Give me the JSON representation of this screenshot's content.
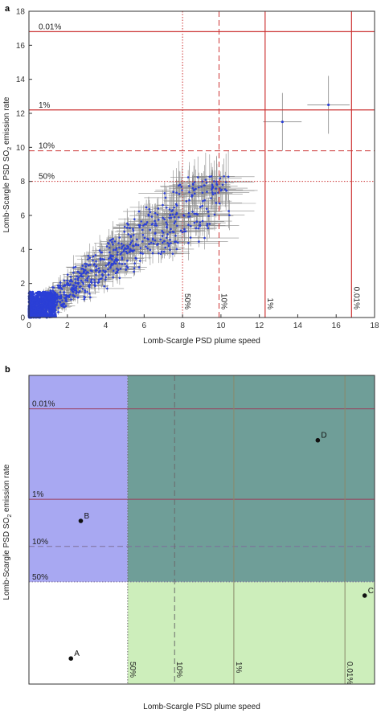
{
  "chart_data": [
    {
      "panel": "a",
      "type": "scatter",
      "xlabel": "Lomb-Scargle PSD plume speed",
      "ylabel": "Lomb-Scargle PSD SO",
      "ylabel_sub": "2",
      "ylabel_tail": " emission rate",
      "xlim": [
        0,
        18
      ],
      "ylim": [
        0,
        18
      ],
      "xticks": [
        "0",
        "2",
        "4",
        "6",
        "8",
        "10",
        "12",
        "14",
        "16",
        "18"
      ],
      "yticks": [
        "0",
        "2",
        "4",
        "6",
        "8",
        "10",
        "12",
        "14",
        "16",
        "18"
      ],
      "point_color": "#2b3fd6",
      "errorbar_color": "#8a8a8a",
      "threshold_color": "#cc3333",
      "y_thresholds": [
        {
          "label": "0.01%",
          "value": 16.8,
          "style": "solid"
        },
        {
          "label": "1%",
          "value": 12.2,
          "style": "solid"
        },
        {
          "label": "10%",
          "value": 9.8,
          "style": "dashed"
        },
        {
          "label": "50%",
          "value": 8.0,
          "style": "dotted"
        }
      ],
      "x_thresholds": [
        {
          "label": "50%",
          "value": 8.0,
          "style": "dotted"
        },
        {
          "label": "10%",
          "value": 9.9,
          "style": "dashed"
        },
        {
          "label": "1%",
          "value": 12.3,
          "style": "solid"
        },
        {
          "label": "0.01%",
          "value": 16.8,
          "style": "solid"
        }
      ],
      "highlight_points": [
        {
          "x": 13.2,
          "y": 11.5,
          "xerr": 1.0,
          "yerr": 1.7
        },
        {
          "x": 15.6,
          "y": 12.5,
          "xerr": 1.1,
          "yerr": 1.7
        }
      ]
    },
    {
      "panel": "b",
      "type": "scatter",
      "xlabel": "Lomb-Scargle PSD plume speed",
      "ylabel": "Lomb-Scargle PSD SO",
      "ylabel_sub": "2",
      "ylabel_tail": " emission rate",
      "xlim": [
        4,
        18
      ],
      "ylim": [
        2.8,
        18.5
      ],
      "region_colors": {
        "top_left": "#a8a8f2",
        "top_right": "#6f9e98",
        "bottom_right": "#cdeebb",
        "bottom_left": "#ffffff"
      },
      "y_thresholds": [
        {
          "label": "0.01%",
          "value": 16.8,
          "style": "solid"
        },
        {
          "label": "1%",
          "value": 12.2,
          "style": "solid"
        },
        {
          "label": "10%",
          "value": 9.8,
          "style": "dashed"
        },
        {
          "label": "50%",
          "value": 8.0,
          "style": "dotted"
        }
      ],
      "x_thresholds": [
        {
          "label": "50%",
          "value": 8.0,
          "style": "dotted"
        },
        {
          "label": "10%",
          "value": 9.9,
          "style": "dashed"
        },
        {
          "label": "1%",
          "value": 12.3,
          "style": "solid"
        },
        {
          "label": "0.01%",
          "value": 16.8,
          "style": "solid"
        }
      ],
      "points": [
        {
          "label": "A",
          "x": 5.7,
          "y": 4.1
        },
        {
          "label": "B",
          "x": 6.1,
          "y": 11.1
        },
        {
          "label": "C",
          "x": 17.6,
          "y": 7.3
        },
        {
          "label": "D",
          "x": 15.7,
          "y": 15.2
        }
      ]
    }
  ]
}
